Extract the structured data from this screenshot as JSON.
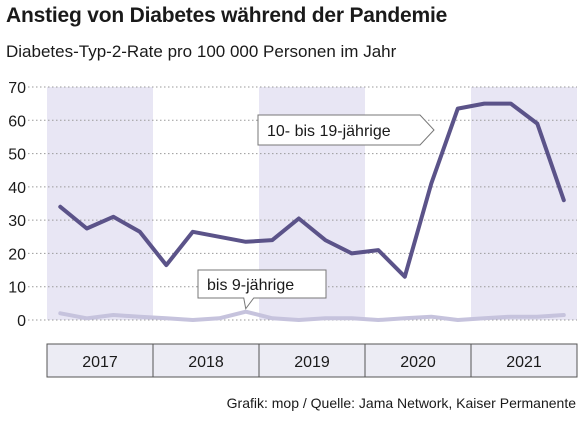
{
  "header": {
    "title": "Anstieg von Diabetes während der Pandemie",
    "subtitle": "Diabetes-Typ-2-Rate pro 100 000 Personen im Jahr"
  },
  "source": "Grafik: mop / Quelle: Jama Network, Kaiser Permanente",
  "colors": {
    "band": "#e8e6f4",
    "line_10_19": "#5b5389",
    "line_0_9": "#c6c3dd",
    "grid": "#9a9a9a",
    "axis_box": "#ececf4"
  },
  "chart_data": {
    "type": "line",
    "title": "Anstieg von Diabetes während der Pandemie",
    "subtitle": "Diabetes-Typ-2-Rate pro 100 000 Personen im Jahr",
    "ylim": [
      0,
      70
    ],
    "yticks": [
      0,
      10,
      20,
      30,
      40,
      50,
      60,
      70
    ],
    "grid": true,
    "x_period": "quarters 2017–2021",
    "years": [
      "2017",
      "2018",
      "2019",
      "2020",
      "2021"
    ],
    "series": [
      {
        "name": "10- bis 19-jährige",
        "values": [
          34,
          27.5,
          31,
          26.5,
          16.5,
          26.5,
          25,
          23.5,
          24,
          30.5,
          24,
          20,
          21,
          13,
          41,
          63.5,
          65,
          65,
          59,
          36
        ]
      },
      {
        "name": "bis 9-jährige",
        "values": [
          2,
          0.5,
          1.5,
          1,
          0.5,
          0,
          0.5,
          2.5,
          0.5,
          0,
          0.5,
          0.5,
          0,
          0.5,
          1,
          0,
          0.5,
          1,
          1,
          1.5
        ]
      }
    ],
    "annotations": [
      {
        "series": "10- bis 19-jährige",
        "text": "10- bis 19-jährige"
      },
      {
        "series": "bis 9-jährige",
        "text": "bis 9-jährige"
      }
    ]
  }
}
